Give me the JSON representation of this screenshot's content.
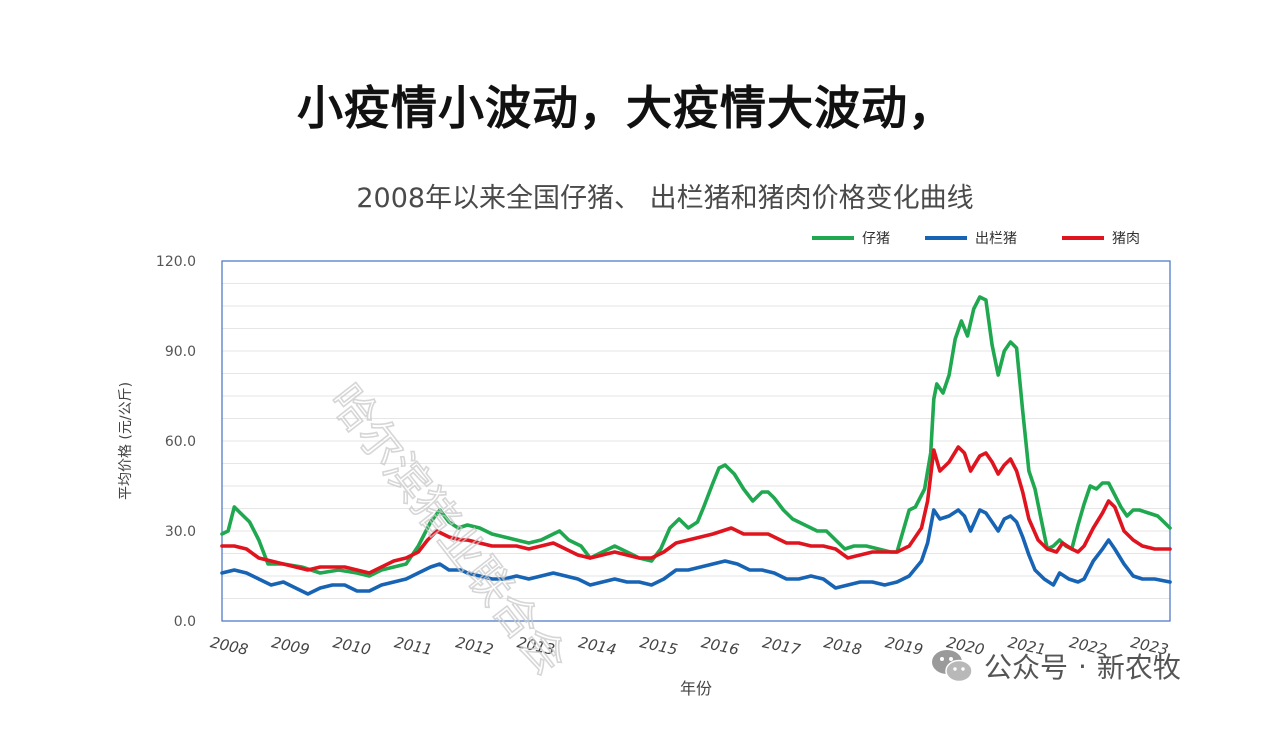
{
  "headline": "小疫情小波动，大疫情大波动，",
  "source_mark": {
    "platform": "公众号",
    "separator": "·",
    "account": "新农牧",
    "diagonal_watermark": "哈尔滨猪业联合会"
  },
  "colors": {
    "piglet": "#1fa84f",
    "hog": "#1764b5",
    "pork": "#e0141e",
    "axis": "#4472c4",
    "grid": "#e6e6e6",
    "tick_text": "#555555"
  },
  "chart_data": {
    "type": "line",
    "title": "2008年以来全国仔猪、 出栏猪和猪肉价格变化曲线",
    "xlabel": "年份",
    "ylabel": "平均价格 (元/公斤)",
    "ylim": [
      0,
      120
    ],
    "yticks": [
      "0.0",
      "30.0",
      "60.0",
      "90.0",
      "120.0"
    ],
    "x_range": [
      2008,
      2023.45
    ],
    "x_ticks": [
      "2008",
      "2009",
      "2010",
      "2011",
      "2012",
      "2013",
      "2014",
      "2015",
      "2016",
      "2017",
      "2018",
      "2019",
      "2020",
      "2021",
      "2022",
      "2023"
    ],
    "legend_position": "top-right",
    "grid": true,
    "series": [
      {
        "name": "仔猪",
        "color": "#1fa84f",
        "points": [
          [
            2008,
            29
          ],
          [
            2008.1,
            30
          ],
          [
            2008.2,
            38
          ],
          [
            2008.3,
            36
          ],
          [
            2008.45,
            33
          ],
          [
            2008.6,
            27
          ],
          [
            2008.75,
            19
          ],
          [
            2009,
            19
          ],
          [
            2009.3,
            18
          ],
          [
            2009.6,
            16
          ],
          [
            2009.9,
            17
          ],
          [
            2010.2,
            16
          ],
          [
            2010.4,
            15
          ],
          [
            2010.6,
            17
          ],
          [
            2010.8,
            18
          ],
          [
            2011,
            19
          ],
          [
            2011.2,
            25
          ],
          [
            2011.4,
            33
          ],
          [
            2011.55,
            37
          ],
          [
            2011.7,
            33
          ],
          [
            2011.85,
            31
          ],
          [
            2012,
            32
          ],
          [
            2012.2,
            31
          ],
          [
            2012.4,
            29
          ],
          [
            2012.6,
            28
          ],
          [
            2012.8,
            27
          ],
          [
            2013,
            26
          ],
          [
            2013.2,
            27
          ],
          [
            2013.4,
            29
          ],
          [
            2013.5,
            30
          ],
          [
            2013.65,
            27
          ],
          [
            2013.85,
            25
          ],
          [
            2014,
            21
          ],
          [
            2014.2,
            23
          ],
          [
            2014.4,
            25
          ],
          [
            2014.6,
            23
          ],
          [
            2014.8,
            21
          ],
          [
            2015,
            20
          ],
          [
            2015.15,
            24
          ],
          [
            2015.3,
            31
          ],
          [
            2015.45,
            34
          ],
          [
            2015.6,
            31
          ],
          [
            2015.75,
            33
          ],
          [
            2015.85,
            38
          ],
          [
            2016,
            46
          ],
          [
            2016.1,
            51
          ],
          [
            2016.2,
            52
          ],
          [
            2016.35,
            49
          ],
          [
            2016.5,
            44
          ],
          [
            2016.65,
            40
          ],
          [
            2016.8,
            43
          ],
          [
            2016.9,
            43
          ],
          [
            2017,
            41
          ],
          [
            2017.15,
            37
          ],
          [
            2017.3,
            34
          ],
          [
            2017.5,
            32
          ],
          [
            2017.7,
            30
          ],
          [
            2017.85,
            30
          ],
          [
            2018,
            27
          ],
          [
            2018.15,
            24
          ],
          [
            2018.3,
            25
          ],
          [
            2018.5,
            25
          ],
          [
            2018.7,
            24
          ],
          [
            2018.9,
            23
          ],
          [
            2019,
            23
          ],
          [
            2019.1,
            30
          ],
          [
            2019.2,
            37
          ],
          [
            2019.3,
            38
          ],
          [
            2019.45,
            44
          ],
          [
            2019.55,
            56
          ],
          [
            2019.6,
            74
          ],
          [
            2019.65,
            79
          ],
          [
            2019.75,
            76
          ],
          [
            2019.85,
            82
          ],
          [
            2019.95,
            94
          ],
          [
            2020.05,
            100
          ],
          [
            2020.15,
            95
          ],
          [
            2020.25,
            104
          ],
          [
            2020.35,
            108
          ],
          [
            2020.45,
            107
          ],
          [
            2020.55,
            92
          ],
          [
            2020.65,
            82
          ],
          [
            2020.75,
            90
          ],
          [
            2020.85,
            93
          ],
          [
            2020.95,
            91
          ],
          [
            2021.05,
            70
          ],
          [
            2021.15,
            50
          ],
          [
            2021.25,
            44
          ],
          [
            2021.35,
            34
          ],
          [
            2021.45,
            24
          ],
          [
            2021.55,
            25
          ],
          [
            2021.65,
            27
          ],
          [
            2021.75,
            25
          ],
          [
            2021.85,
            24
          ],
          [
            2021.95,
            32
          ],
          [
            2022.05,
            39
          ],
          [
            2022.15,
            45
          ],
          [
            2022.25,
            44
          ],
          [
            2022.35,
            46
          ],
          [
            2022.45,
            46
          ],
          [
            2022.55,
            42
          ],
          [
            2022.65,
            38
          ],
          [
            2022.75,
            35
          ],
          [
            2022.85,
            37
          ],
          [
            2022.95,
            37
          ],
          [
            2023.1,
            36
          ],
          [
            2023.25,
            35
          ],
          [
            2023.35,
            33
          ],
          [
            2023.45,
            31
          ]
        ]
      },
      {
        "name": "出栏猪",
        "color": "#1764b5",
        "points": [
          [
            2008,
            16
          ],
          [
            2008.2,
            17
          ],
          [
            2008.4,
            16
          ],
          [
            2008.6,
            14
          ],
          [
            2008.8,
            12
          ],
          [
            2009,
            13
          ],
          [
            2009.2,
            11
          ],
          [
            2009.4,
            9
          ],
          [
            2009.6,
            11
          ],
          [
            2009.8,
            12
          ],
          [
            2010,
            12
          ],
          [
            2010.2,
            10
          ],
          [
            2010.4,
            10
          ],
          [
            2010.6,
            12
          ],
          [
            2010.8,
            13
          ],
          [
            2011,
            14
          ],
          [
            2011.2,
            16
          ],
          [
            2011.4,
            18
          ],
          [
            2011.55,
            19
          ],
          [
            2011.7,
            17
          ],
          [
            2011.9,
            17
          ],
          [
            2012,
            16
          ],
          [
            2012.2,
            15
          ],
          [
            2012.4,
            14
          ],
          [
            2012.6,
            14
          ],
          [
            2012.8,
            15
          ],
          [
            2013,
            14
          ],
          [
            2013.2,
            15
          ],
          [
            2013.4,
            16
          ],
          [
            2013.6,
            15
          ],
          [
            2013.8,
            14
          ],
          [
            2014,
            12
          ],
          [
            2014.2,
            13
          ],
          [
            2014.4,
            14
          ],
          [
            2014.6,
            13
          ],
          [
            2014.8,
            13
          ],
          [
            2015,
            12
          ],
          [
            2015.2,
            14
          ],
          [
            2015.4,
            17
          ],
          [
            2015.6,
            17
          ],
          [
            2015.8,
            18
          ],
          [
            2016,
            19
          ],
          [
            2016.2,
            20
          ],
          [
            2016.4,
            19
          ],
          [
            2016.6,
            17
          ],
          [
            2016.8,
            17
          ],
          [
            2017,
            16
          ],
          [
            2017.2,
            14
          ],
          [
            2017.4,
            14
          ],
          [
            2017.6,
            15
          ],
          [
            2017.8,
            14
          ],
          [
            2018,
            11
          ],
          [
            2018.2,
            12
          ],
          [
            2018.4,
            13
          ],
          [
            2018.6,
            13
          ],
          [
            2018.8,
            12
          ],
          [
            2019,
            13
          ],
          [
            2019.2,
            15
          ],
          [
            2019.4,
            20
          ],
          [
            2019.5,
            26
          ],
          [
            2019.6,
            37
          ],
          [
            2019.7,
            34
          ],
          [
            2019.85,
            35
          ],
          [
            2020,
            37
          ],
          [
            2020.1,
            35
          ],
          [
            2020.2,
            30
          ],
          [
            2020.35,
            37
          ],
          [
            2020.45,
            36
          ],
          [
            2020.55,
            33
          ],
          [
            2020.65,
            30
          ],
          [
            2020.75,
            34
          ],
          [
            2020.85,
            35
          ],
          [
            2020.95,
            33
          ],
          [
            2021.05,
            28
          ],
          [
            2021.15,
            22
          ],
          [
            2021.25,
            17
          ],
          [
            2021.4,
            14
          ],
          [
            2021.55,
            12
          ],
          [
            2021.65,
            16
          ],
          [
            2021.8,
            14
          ],
          [
            2021.95,
            13
          ],
          [
            2022.05,
            14
          ],
          [
            2022.2,
            20
          ],
          [
            2022.35,
            24
          ],
          [
            2022.45,
            27
          ],
          [
            2022.55,
            24
          ],
          [
            2022.7,
            19
          ],
          [
            2022.85,
            15
          ],
          [
            2023,
            14
          ],
          [
            2023.2,
            14
          ],
          [
            2023.45,
            13
          ]
        ]
      },
      {
        "name": "猪肉",
        "color": "#e0141e",
        "points": [
          [
            2008,
            25
          ],
          [
            2008.2,
            25
          ],
          [
            2008.4,
            24
          ],
          [
            2008.6,
            21
          ],
          [
            2008.8,
            20
          ],
          [
            2009,
            19
          ],
          [
            2009.2,
            18
          ],
          [
            2009.4,
            17
          ],
          [
            2009.6,
            18
          ],
          [
            2009.8,
            18
          ],
          [
            2010,
            18
          ],
          [
            2010.2,
            17
          ],
          [
            2010.4,
            16
          ],
          [
            2010.6,
            18
          ],
          [
            2010.8,
            20
          ],
          [
            2011,
            21
          ],
          [
            2011.2,
            23
          ],
          [
            2011.35,
            27
          ],
          [
            2011.5,
            30
          ],
          [
            2011.7,
            28
          ],
          [
            2011.9,
            27
          ],
          [
            2012,
            27
          ],
          [
            2012.2,
            26
          ],
          [
            2012.4,
            25
          ],
          [
            2012.6,
            25
          ],
          [
            2012.8,
            25
          ],
          [
            2013,
            24
          ],
          [
            2013.2,
            25
          ],
          [
            2013.4,
            26
          ],
          [
            2013.6,
            24
          ],
          [
            2013.8,
            22
          ],
          [
            2014,
            21
          ],
          [
            2014.2,
            22
          ],
          [
            2014.4,
            23
          ],
          [
            2014.6,
            22
          ],
          [
            2014.8,
            21
          ],
          [
            2015,
            21
          ],
          [
            2015.2,
            23
          ],
          [
            2015.4,
            26
          ],
          [
            2015.6,
            27
          ],
          [
            2015.8,
            28
          ],
          [
            2016,
            29
          ],
          [
            2016.15,
            30
          ],
          [
            2016.3,
            31
          ],
          [
            2016.5,
            29
          ],
          [
            2016.7,
            29
          ],
          [
            2016.9,
            29
          ],
          [
            2017,
            28
          ],
          [
            2017.2,
            26
          ],
          [
            2017.4,
            26
          ],
          [
            2017.6,
            25
          ],
          [
            2017.8,
            25
          ],
          [
            2018,
            24
          ],
          [
            2018.2,
            21
          ],
          [
            2018.4,
            22
          ],
          [
            2018.6,
            23
          ],
          [
            2018.8,
            23
          ],
          [
            2019,
            23
          ],
          [
            2019.2,
            25
          ],
          [
            2019.4,
            31
          ],
          [
            2019.5,
            40
          ],
          [
            2019.6,
            57
          ],
          [
            2019.7,
            50
          ],
          [
            2019.85,
            53
          ],
          [
            2020,
            58
          ],
          [
            2020.1,
            56
          ],
          [
            2020.2,
            50
          ],
          [
            2020.35,
            55
          ],
          [
            2020.45,
            56
          ],
          [
            2020.55,
            53
          ],
          [
            2020.65,
            49
          ],
          [
            2020.75,
            52
          ],
          [
            2020.85,
            54
          ],
          [
            2020.95,
            50
          ],
          [
            2021.05,
            43
          ],
          [
            2021.15,
            34
          ],
          [
            2021.3,
            27
          ],
          [
            2021.45,
            24
          ],
          [
            2021.6,
            23
          ],
          [
            2021.7,
            26
          ],
          [
            2021.85,
            24
          ],
          [
            2021.95,
            23
          ],
          [
            2022.05,
            25
          ],
          [
            2022.2,
            31
          ],
          [
            2022.35,
            36
          ],
          [
            2022.45,
            40
          ],
          [
            2022.55,
            38
          ],
          [
            2022.7,
            30
          ],
          [
            2022.85,
            27
          ],
          [
            2023,
            25
          ],
          [
            2023.2,
            24
          ],
          [
            2023.45,
            24
          ]
        ]
      }
    ]
  }
}
